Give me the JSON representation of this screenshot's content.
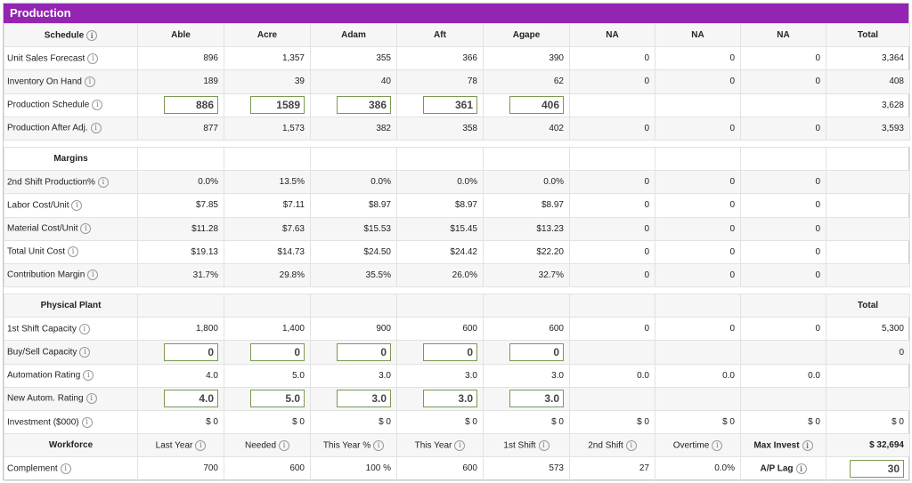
{
  "title": "Production",
  "info_glyph": "i",
  "columns": [
    "Able",
    "Acre",
    "Adam",
    "Aft",
    "Agape",
    "NA",
    "NA",
    "NA",
    "Total"
  ],
  "schedule": {
    "header": "Schedule",
    "rows": [
      {
        "label": "Unit Sales Forecast",
        "values": [
          "896",
          "1,357",
          "355",
          "366",
          "390",
          "0",
          "0",
          "0"
        ],
        "total": "3,364"
      },
      {
        "label": "Inventory On Hand",
        "values": [
          "189",
          "39",
          "40",
          "78",
          "62",
          "0",
          "0",
          "0"
        ],
        "total": "408"
      },
      {
        "label": "Production Schedule",
        "inputs": [
          "886",
          "1589",
          "386",
          "361",
          "406"
        ],
        "total": "3,628"
      },
      {
        "label": "Production After Adj.",
        "values": [
          "877",
          "1,573",
          "382",
          "358",
          "402",
          "0",
          "0",
          "0"
        ],
        "total": "3,593"
      }
    ]
  },
  "margins": {
    "header": "Margins",
    "rows": [
      {
        "label": "2nd Shift Production%",
        "values": [
          "0.0%",
          "13.5%",
          "0.0%",
          "0.0%",
          "0.0%",
          "0",
          "0",
          "0"
        ]
      },
      {
        "label": "Labor Cost/Unit",
        "values": [
          "$7.85",
          "$7.11",
          "$8.97",
          "$8.97",
          "$8.97",
          "0",
          "0",
          "0"
        ]
      },
      {
        "label": "Material Cost/Unit",
        "values": [
          "$11.28",
          "$7.63",
          "$15.53",
          "$15.45",
          "$13.23",
          "0",
          "0",
          "0"
        ]
      },
      {
        "label": "Total Unit Cost",
        "values": [
          "$19.13",
          "$14.73",
          "$24.50",
          "$24.42",
          "$22.20",
          "0",
          "0",
          "0"
        ]
      },
      {
        "label": "Contribution Margin",
        "values": [
          "31.7%",
          "29.8%",
          "35.5%",
          "26.0%",
          "32.7%",
          "0",
          "0",
          "0"
        ]
      }
    ]
  },
  "physical_plant": {
    "header": "Physical Plant",
    "total_header": "Total",
    "capacity": {
      "label": "1st Shift Capacity",
      "values": [
        "1,800",
        "1,400",
        "900",
        "600",
        "600",
        "0",
        "0",
        "0"
      ],
      "total": "5,300"
    },
    "buy_sell": {
      "label": "Buy/Sell Capacity",
      "inputs": [
        "0",
        "0",
        "0",
        "0",
        "0"
      ],
      "total": "0"
    },
    "automation": {
      "label": "Automation Rating",
      "values": [
        "4.0",
        "5.0",
        "3.0",
        "3.0",
        "3.0",
        "0.0",
        "0.0",
        "0.0"
      ]
    },
    "new_autom": {
      "label": "New Autom. Rating",
      "inputs": [
        "4.0",
        "5.0",
        "3.0",
        "3.0",
        "3.0"
      ]
    },
    "investment": {
      "label": "Investment ($000)",
      "values": [
        "$ 0",
        "$ 0",
        "$ 0",
        "$ 0",
        "$ 0",
        "$ 0",
        "$ 0",
        "$ 0"
      ],
      "total": "$ 0"
    }
  },
  "workforce": {
    "header": "Workforce",
    "subheaders": [
      "Last Year",
      "Needed",
      "This Year %",
      "This Year",
      "1st Shift",
      "2nd Shift",
      "Overtime",
      "Max Invest"
    ],
    "max_invest_value": "$ 32,694",
    "complement_label": "Complement",
    "complement_values": [
      "700",
      "600",
      "100 %",
      "600",
      "573",
      "27",
      "0.0%"
    ],
    "ap_lag_label": "A/P Lag",
    "ap_lag_value": "30"
  }
}
